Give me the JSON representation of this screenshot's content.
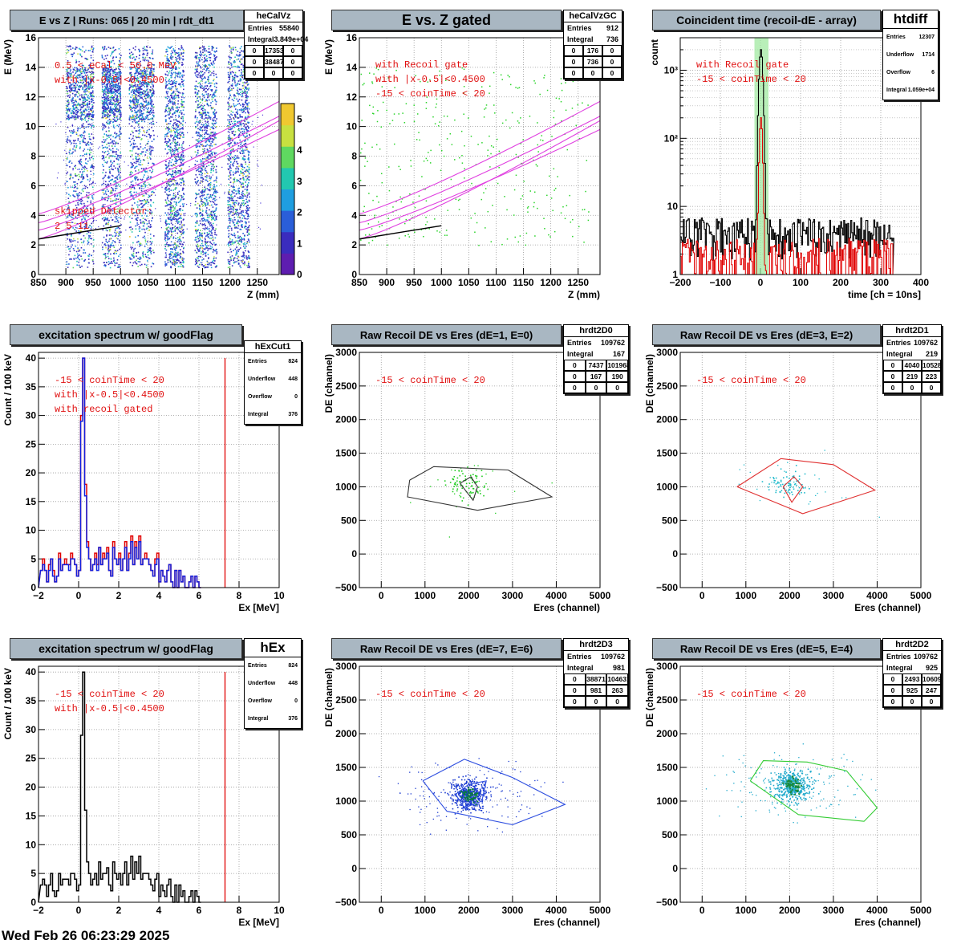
{
  "footer_date": "Wed Feb 26 06:23:29 2025",
  "panels": [
    {
      "key": "p1",
      "title": "E vs Z | Runs: 065 | 20 min | rdt_dt1",
      "xlabel": "Z (mm)",
      "ylabel": "E (MeV)",
      "xticks": [
        "850",
        "900",
        "950",
        "1000",
        "1050",
        "1100",
        "1150",
        "1200",
        "1250"
      ],
      "yticks": [
        "0",
        "2",
        "4",
        "6",
        "8",
        "10",
        "12",
        "14",
        "16"
      ],
      "palette_ticks": [
        "0",
        "1",
        "2",
        "3",
        "4",
        "5"
      ],
      "annotations": [
        "0.5 < eCal < 50.0 MeV",
        "with |x-0.5|<0.4500",
        "skipped Detector:",
        "2    5    11"
      ],
      "stats": {
        "name": "heCalVz",
        "rows": [
          [
            "Entries",
            "55840"
          ],
          [
            "Integral",
            "3.849e+04"
          ]
        ],
        "grid": [
          "0",
          "17353",
          "0",
          "0",
          "38487",
          "0",
          "0",
          "0",
          "0"
        ]
      }
    },
    {
      "key": "p2",
      "title": "E vs. Z gated",
      "xlabel": "Z (mm)",
      "ylabel": "E (MeV)",
      "xticks": [
        "850",
        "900",
        "950",
        "1000",
        "1050",
        "1100",
        "1150",
        "1200",
        "1250"
      ],
      "yticks": [
        "0",
        "2",
        "4",
        "6",
        "8",
        "10",
        "12",
        "14",
        "16"
      ],
      "annotations": [
        "with Recoil gate",
        "with |x-0.5|<0.4500",
        "-15 < coinTime < 20"
      ],
      "stats": {
        "name": "heCalVzGC",
        "rows": [
          [
            "Entries",
            "912"
          ],
          [
            "Integral",
            "736"
          ]
        ],
        "grid": [
          "0",
          "176",
          "0",
          "0",
          "736",
          "0",
          "0",
          "0",
          "0"
        ]
      }
    },
    {
      "key": "p3",
      "title": "Coincident time (recoil-dE - array)",
      "xlabel": "time [ch = 10ns]",
      "ylabel": "count",
      "xticks": [
        "−200",
        "−100",
        "0",
        "100",
        "200",
        "300",
        "400"
      ],
      "yticks": [
        "1",
        "10",
        "10²",
        "10³"
      ],
      "annotations": [
        "with Recoil gate",
        "-15 < coinTime < 20"
      ],
      "stats": {
        "name": "htdiff",
        "rows": [
          [
            "Entries",
            "12307"
          ],
          [
            "Underflow",
            "1714"
          ],
          [
            "Overflow",
            "6"
          ],
          [
            "Integral",
            "1.059e+04"
          ]
        ]
      }
    },
    {
      "key": "p4",
      "title": "excitation spectrum w/ goodFlag",
      "xlabel": "Ex [MeV]",
      "ylabel": "Count / 100 keV",
      "xticks": [
        "−2",
        "0",
        "2",
        "4",
        "6",
        "8",
        "10"
      ],
      "yticks": [
        "0",
        "5",
        "10",
        "15",
        "20",
        "25",
        "30",
        "35",
        "40"
      ],
      "annotations": [
        "-15 < coinTime < 20",
        "with |x-0.5|<0.4500",
        "with recoil gated"
      ],
      "stats": {
        "name": "hExCut1",
        "rows": [
          [
            "Entries",
            "824"
          ],
          [
            "Underflow",
            "448"
          ],
          [
            "Overflow",
            "0"
          ],
          [
            "Integral",
            "376"
          ]
        ]
      }
    },
    {
      "key": "p5",
      "title": "Raw Recoil DE vs Eres (dE=1, E=0)",
      "xlabel": "Eres (channel)",
      "ylabel": "DE (channel)",
      "xticks": [
        "0",
        "1000",
        "2000",
        "3000",
        "4000",
        "5000"
      ],
      "yticks": [
        "−500",
        "0",
        "500",
        "1000",
        "1500",
        "2000",
        "2500",
        "3000"
      ],
      "annotations": [
        "-15 < coinTime < 20"
      ],
      "stats": {
        "name": "hrdt2D0",
        "rows": [
          [
            "Entries",
            "109762"
          ],
          [
            "Integral",
            "167"
          ]
        ],
        "grid": [
          "0",
          "7437",
          "101968",
          "0",
          "167",
          "190",
          "0",
          "0",
          "0"
        ]
      }
    },
    {
      "key": "p6",
      "title": "Raw Recoil DE vs Eres (dE=3, E=2)",
      "xlabel": "Eres (channel)",
      "ylabel": "DE (channel)",
      "xticks": [
        "0",
        "1000",
        "2000",
        "3000",
        "4000",
        "5000"
      ],
      "yticks": [
        "−500",
        "0",
        "500",
        "1000",
        "1500",
        "2000",
        "2500",
        "3000"
      ],
      "annotations": [
        "-15 < coinTime < 20"
      ],
      "stats": {
        "name": "hrdt2D1",
        "rows": [
          [
            "Entries",
            "109762"
          ],
          [
            "Integral",
            "219"
          ]
        ],
        "grid": [
          "0",
          "4040",
          "105280",
          "0",
          "219",
          "223",
          "0",
          "0",
          "0"
        ]
      }
    },
    {
      "key": "p7",
      "title": "excitation spectrum w/ goodFlag",
      "xlabel": "Ex [MeV]",
      "ylabel": "Count / 100 keV",
      "xticks": [
        "−2",
        "0",
        "2",
        "4",
        "6",
        "8",
        "10"
      ],
      "yticks": [
        "0",
        "5",
        "10",
        "15",
        "20",
        "25",
        "30",
        "35",
        "40"
      ],
      "annotations": [
        "-15 < coinTime < 20",
        "with |x-0.5|<0.4500"
      ],
      "stats": {
        "name": "hEx",
        "rows": [
          [
            "Entries",
            "824"
          ],
          [
            "Underflow",
            "448"
          ],
          [
            "Overflow",
            "0"
          ],
          [
            "Integral",
            "376"
          ]
        ]
      }
    },
    {
      "key": "p8",
      "title": "Raw Recoil DE vs Eres (dE=7, E=6)",
      "xlabel": "Eres (channel)",
      "ylabel": "DE (channel)",
      "xticks": [
        "0",
        "1000",
        "2000",
        "3000",
        "4000",
        "5000"
      ],
      "yticks": [
        "−500",
        "0",
        "500",
        "1000",
        "1500",
        "2000",
        "2500",
        "3000"
      ],
      "annotations": [
        "-15 < coinTime < 20"
      ],
      "stats": {
        "name": "hrdt2D3",
        "rows": [
          [
            "Entries",
            "109762"
          ],
          [
            "Integral",
            "981"
          ]
        ],
        "grid": [
          "0",
          "38871",
          "104631",
          "0",
          "981",
          "263",
          "0",
          "0",
          "0"
        ]
      }
    },
    {
      "key": "p9",
      "title": "Raw Recoil DE vs Eres (dE=5, E=4)",
      "xlabel": "Eres (channel)",
      "ylabel": "DE (channel)",
      "xticks": [
        "0",
        "1000",
        "2000",
        "3000",
        "4000",
        "5000"
      ],
      "yticks": [
        "−500",
        "0",
        "500",
        "1000",
        "1500",
        "2000",
        "2500",
        "3000"
      ],
      "annotations": [
        "-15 < coinTime < 20"
      ],
      "stats": {
        "name": "hrdt2D2",
        "rows": [
          [
            "Entries",
            "109762"
          ],
          [
            "Integral",
            "925"
          ]
        ],
        "grid": [
          "0",
          "2493",
          "106097",
          "0",
          "925",
          "247",
          "0",
          "0",
          "0"
        ]
      }
    }
  ],
  "chart_data": [
    {
      "type": "heatmap",
      "title": "E vs Z | Runs: 065 | 20 min | rdt_dt1",
      "xlabel": "Z (mm)",
      "ylabel": "E (MeV)",
      "xlim": [
        850,
        1290
      ],
      "ylim": [
        0,
        16
      ],
      "zlim": [
        0,
        5.5
      ],
      "detector_columns_z": [
        [
          900,
          950
        ],
        [
          965,
          1000
        ],
        [
          1015,
          1060
        ],
        [
          1080,
          1115
        ],
        [
          1135,
          1175
        ],
        [
          1195,
          1235
        ]
      ],
      "kinematic_curves_color": "#e040e0"
    },
    {
      "type": "scatter",
      "title": "E vs. Z gated",
      "xlabel": "Z (mm)",
      "ylabel": "E (MeV)",
      "xlim": [
        850,
        1290
      ],
      "ylim": [
        0,
        16
      ]
    },
    {
      "type": "line",
      "title": "Coincident time (recoil-dE - array)",
      "xlabel": "time [ch = 10ns]",
      "ylabel": "count",
      "xlim": [
        -200,
        400
      ],
      "ylim": [
        1,
        3000
      ],
      "log_y": true,
      "series": [
        {
          "color": "#000000",
          "peak_x": 0,
          "peak_y": 2000,
          "baseline": 4
        },
        {
          "color": "#e00000",
          "peak_x": 0,
          "peak_y": 200,
          "baseline": 2
        }
      ],
      "gate": [
        -15,
        20
      ],
      "gate_color": "#9be89b"
    },
    {
      "type": "bar",
      "title": "excitation spectrum w/ goodFlag",
      "xlabel": "Ex [MeV]",
      "ylabel": "Count / 100 keV",
      "xlim": [
        -2,
        10
      ],
      "ylim": [
        0,
        41
      ],
      "bin_start": -1.9,
      "bin_width": 0.1,
      "series": [
        {
          "color": "#e00000",
          "values": [
            3,
            5,
            3,
            1,
            4,
            5,
            3,
            1,
            2,
            6,
            3,
            4,
            5,
            4,
            4,
            6,
            5,
            4,
            2,
            3,
            30,
            40,
            18,
            8,
            5,
            3,
            4,
            6,
            4,
            7,
            4,
            6,
            5,
            7,
            3,
            2,
            8,
            5,
            4,
            6,
            3,
            5,
            8,
            3,
            6,
            9,
            4,
            8,
            5,
            9,
            4,
            5,
            6,
            5,
            4,
            3,
            2,
            5,
            6,
            1,
            3,
            2,
            1,
            3,
            4,
            1,
            0,
            3,
            0,
            3,
            1,
            2,
            0,
            0,
            1,
            2,
            0,
            2,
            1,
            0
          ]
        },
        {
          "color": "#1020e0",
          "values": [
            3,
            4,
            3,
            1,
            3,
            5,
            2,
            1,
            2,
            5,
            3,
            4,
            4,
            4,
            3,
            5,
            5,
            4,
            2,
            3,
            29,
            40,
            16,
            7,
            5,
            3,
            4,
            5,
            3,
            7,
            4,
            5,
            5,
            6,
            3,
            2,
            7,
            5,
            4,
            5,
            3,
            5,
            7,
            3,
            5,
            8,
            4,
            7,
            5,
            8,
            4,
            5,
            5,
            5,
            4,
            3,
            2,
            4,
            5,
            1,
            3,
            2,
            1,
            3,
            4,
            1,
            0,
            3,
            0,
            3,
            1,
            2,
            0,
            0,
            1,
            2,
            0,
            2,
            1,
            0
          ]
        }
      ],
      "markers": [
        7.3
      ],
      "marker_color": "#e00000"
    },
    {
      "type": "scatter",
      "title": "Raw Recoil DE vs Eres (dE=1, E=0)",
      "xlabel": "Eres (channel)",
      "ylabel": "DE (channel)",
      "xlim": [
        -500,
        5000
      ],
      "ylim": [
        -500,
        3000
      ],
      "cluster_center": [
        1950,
        1050
      ],
      "cut_outer": [
        [
          650,
          1100
        ],
        [
          1200,
          1300
        ],
        [
          2900,
          1250
        ],
        [
          3900,
          850
        ],
        [
          2200,
          650
        ],
        [
          600,
          850
        ],
        [
          650,
          1100
        ]
      ],
      "cut_inner": [
        [
          1800,
          1050
        ],
        [
          2050,
          1150
        ],
        [
          2200,
          1000
        ],
        [
          2100,
          800
        ],
        [
          1800,
          1050
        ]
      ],
      "cut_color": "#333333",
      "point_color": "#22cc22"
    },
    {
      "type": "scatter",
      "title": "Raw Recoil DE vs Eres (dE=3, E=2)",
      "xlabel": "Eres (channel)",
      "ylabel": "DE (channel)",
      "xlim": [
        -500,
        5000
      ],
      "ylim": [
        -500,
        3000
      ],
      "cluster_center": [
        1950,
        1050
      ],
      "cut_outer": [
        [
          800,
          1000
        ],
        [
          1800,
          1420
        ],
        [
          3000,
          1330
        ],
        [
          3950,
          950
        ],
        [
          2300,
          600
        ],
        [
          800,
          1000
        ]
      ],
      "cut_inner": [
        [
          1850,
          1000
        ],
        [
          2100,
          1150
        ],
        [
          2300,
          1000
        ],
        [
          2050,
          770
        ],
        [
          1850,
          1000
        ]
      ],
      "cut_color": "#e03030",
      "point_color": "#22bbcc"
    },
    {
      "type": "bar",
      "title": "excitation spectrum w/ goodFlag",
      "xlabel": "Ex [MeV]",
      "ylabel": "Count / 100 keV",
      "xlim": [
        -2,
        10
      ],
      "ylim": [
        0,
        41
      ],
      "bin_start": -1.9,
      "bin_width": 0.1,
      "series": [
        {
          "color": "#000000",
          "values": [
            3,
            4,
            3,
            1,
            3,
            5,
            2,
            1,
            2,
            5,
            3,
            4,
            4,
            4,
            3,
            5,
            5,
            4,
            2,
            3,
            29,
            40,
            16,
            7,
            5,
            3,
            4,
            5,
            3,
            7,
            4,
            5,
            5,
            6,
            3,
            2,
            7,
            5,
            4,
            5,
            3,
            5,
            7,
            3,
            5,
            8,
            4,
            7,
            5,
            8,
            4,
            5,
            5,
            5,
            4,
            3,
            2,
            4,
            5,
            1,
            3,
            2,
            1,
            3,
            4,
            1,
            0,
            3,
            0,
            3,
            1,
            2,
            0,
            0,
            1,
            2,
            0,
            2,
            1,
            0
          ]
        }
      ],
      "markers": [
        7.3
      ],
      "marker_color": "#e00000"
    },
    {
      "type": "scatter",
      "title": "Raw Recoil DE vs Eres (dE=7, E=6)",
      "xlabel": "Eres (channel)",
      "ylabel": "DE (channel)",
      "xlim": [
        -500,
        5000
      ],
      "ylim": [
        -500,
        3000
      ],
      "cluster_center": [
        2000,
        1100
      ],
      "cut_outer": [
        [
          950,
          1300
        ],
        [
          1900,
          1620
        ],
        [
          3000,
          1350
        ],
        [
          4200,
          950
        ],
        [
          3000,
          650
        ],
        [
          1500,
          850
        ],
        [
          950,
          1300
        ]
      ],
      "cut_inner": [
        [
          1700,
          1100
        ],
        [
          2000,
          1250
        ],
        [
          2400,
          1300
        ],
        [
          2300,
          1000
        ],
        [
          1900,
          900
        ],
        [
          1700,
          1100
        ]
      ],
      "cut_color": "#3050e0",
      "point_color": "#1a3ad0"
    },
    {
      "type": "scatter",
      "title": "Raw Recoil DE vs Eres (dE=5, E=4)",
      "xlabel": "Eres (channel)",
      "ylabel": "DE (channel)",
      "xlim": [
        -500,
        5000
      ],
      "ylim": [
        -500,
        3000
      ],
      "cluster_center": [
        2050,
        1250
      ],
      "cut_outer": [
        [
          1100,
          1300
        ],
        [
          1400,
          1600
        ],
        [
          2400,
          1580
        ],
        [
          3300,
          1450
        ],
        [
          4000,
          900
        ],
        [
          3700,
          700
        ],
        [
          2200,
          800
        ],
        [
          1100,
          1300
        ]
      ],
      "cut_inner": [],
      "cut_color": "#33cc33",
      "point_color": "#22aacc"
    }
  ]
}
